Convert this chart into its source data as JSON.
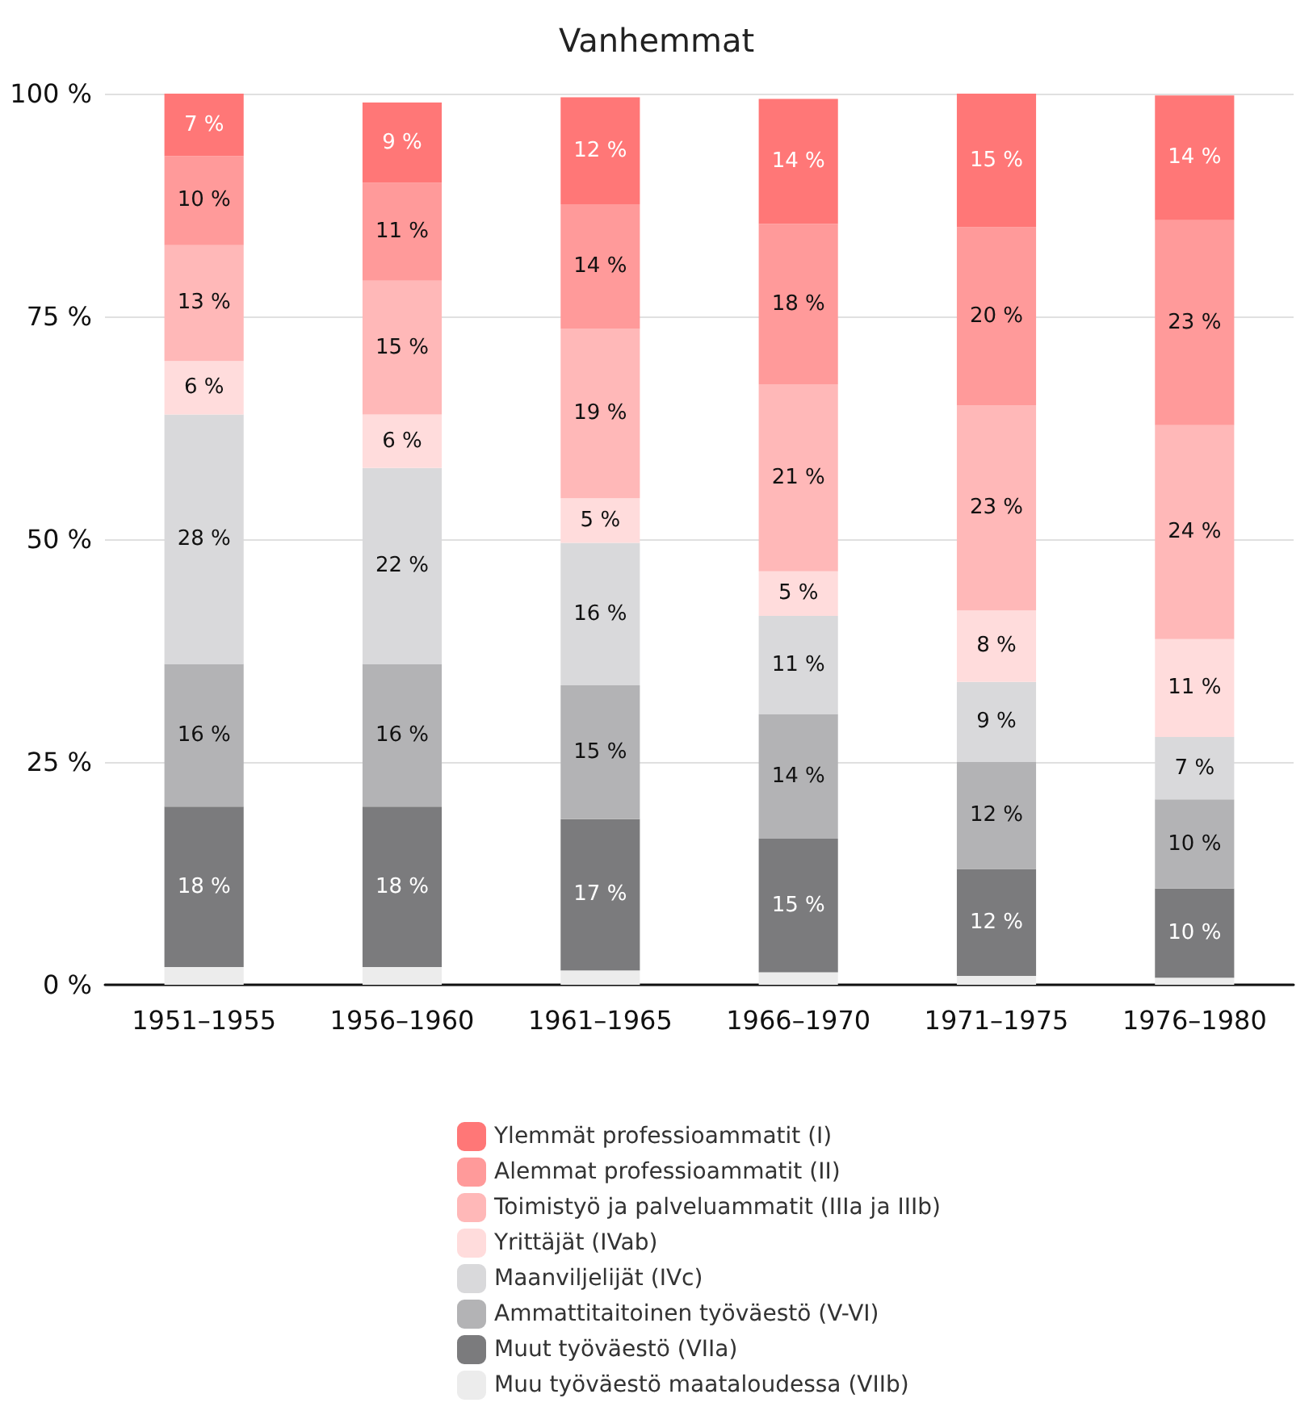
{
  "chart_data": {
    "type": "bar",
    "title": "Vanhemmat",
    "stacked": true,
    "categories": [
      "1951–1955",
      "1956–1960",
      "1961–1965",
      "1966–1970",
      "1971–1975",
      "1976–1980"
    ],
    "series": [
      {
        "name": "Muu työväestö maataloudessa (VIIb)",
        "color": "#ececec",
        "values": [
          2,
          2,
          1.6,
          1.4,
          1,
          0.8
        ],
        "value_labels": [
          null,
          null,
          null,
          null,
          null,
          null
        ]
      },
      {
        "name": "Muut työväestö (VIIa)",
        "color": "#7b7b7d",
        "values": [
          18,
          18,
          17,
          15,
          12,
          10
        ],
        "value_labels": [
          "18 %",
          "18 %",
          "17 %",
          "15 %",
          "12 %",
          "10 %"
        ]
      },
      {
        "name": "Ammattitaitoinen työväestö (V-VI)",
        "color": "#b3b3b5",
        "values": [
          16,
          16,
          15,
          14,
          12,
          10
        ],
        "value_labels": [
          "16 %",
          "16 %",
          "15 %",
          "14 %",
          "12 %",
          "10 %"
        ]
      },
      {
        "name": "Maanviljelijät (IVc)",
        "color": "#d9d9db",
        "values": [
          28,
          22,
          16,
          11,
          9,
          7
        ],
        "value_labels": [
          "28 %",
          "22 %",
          "16 %",
          "11 %",
          "9 %",
          "7 %"
        ]
      },
      {
        "name": "Yrittäjät (IVab)",
        "color": "#ffdcdc",
        "values": [
          6,
          6,
          5,
          5,
          8,
          11
        ],
        "value_labels": [
          "6 %",
          "6 %",
          "5 %",
          "5 %",
          "8 %",
          "11 %"
        ]
      },
      {
        "name": "Toimistyö ja palveluammatit (IIIa ja IIIb)",
        "color": "#ffb8b8",
        "values": [
          13,
          15,
          19,
          21,
          23,
          24
        ],
        "value_labels": [
          "13 %",
          "15 %",
          "19 %",
          "21 %",
          "23 %",
          "24 %"
        ]
      },
      {
        "name": "Alemmat professioammatit (II)",
        "color": "#ff9a9a",
        "values": [
          10,
          11,
          14,
          18,
          20,
          23
        ],
        "value_labels": [
          "10 %",
          "11 %",
          "14 %",
          "18 %",
          "20 %",
          "23 %"
        ]
      },
      {
        "name": "Ylemmät professioammatit (I)",
        "color": "#ff7777",
        "values": [
          7,
          9,
          12,
          14,
          15,
          14
        ],
        "value_labels": [
          "7 %",
          "9 %",
          "12 %",
          "14 %",
          "15 %",
          "14 %"
        ]
      }
    ],
    "ylim": [
      0,
      100
    ],
    "yticks": [
      {
        "value": 0,
        "label": "0 %"
      },
      {
        "value": 25,
        "label": "25 %"
      },
      {
        "value": 50,
        "label": "50 %"
      },
      {
        "value": 75,
        "label": "75 %"
      },
      {
        "value": 100,
        "label": "100 %"
      }
    ],
    "grid": "y",
    "legend": "bottom"
  }
}
